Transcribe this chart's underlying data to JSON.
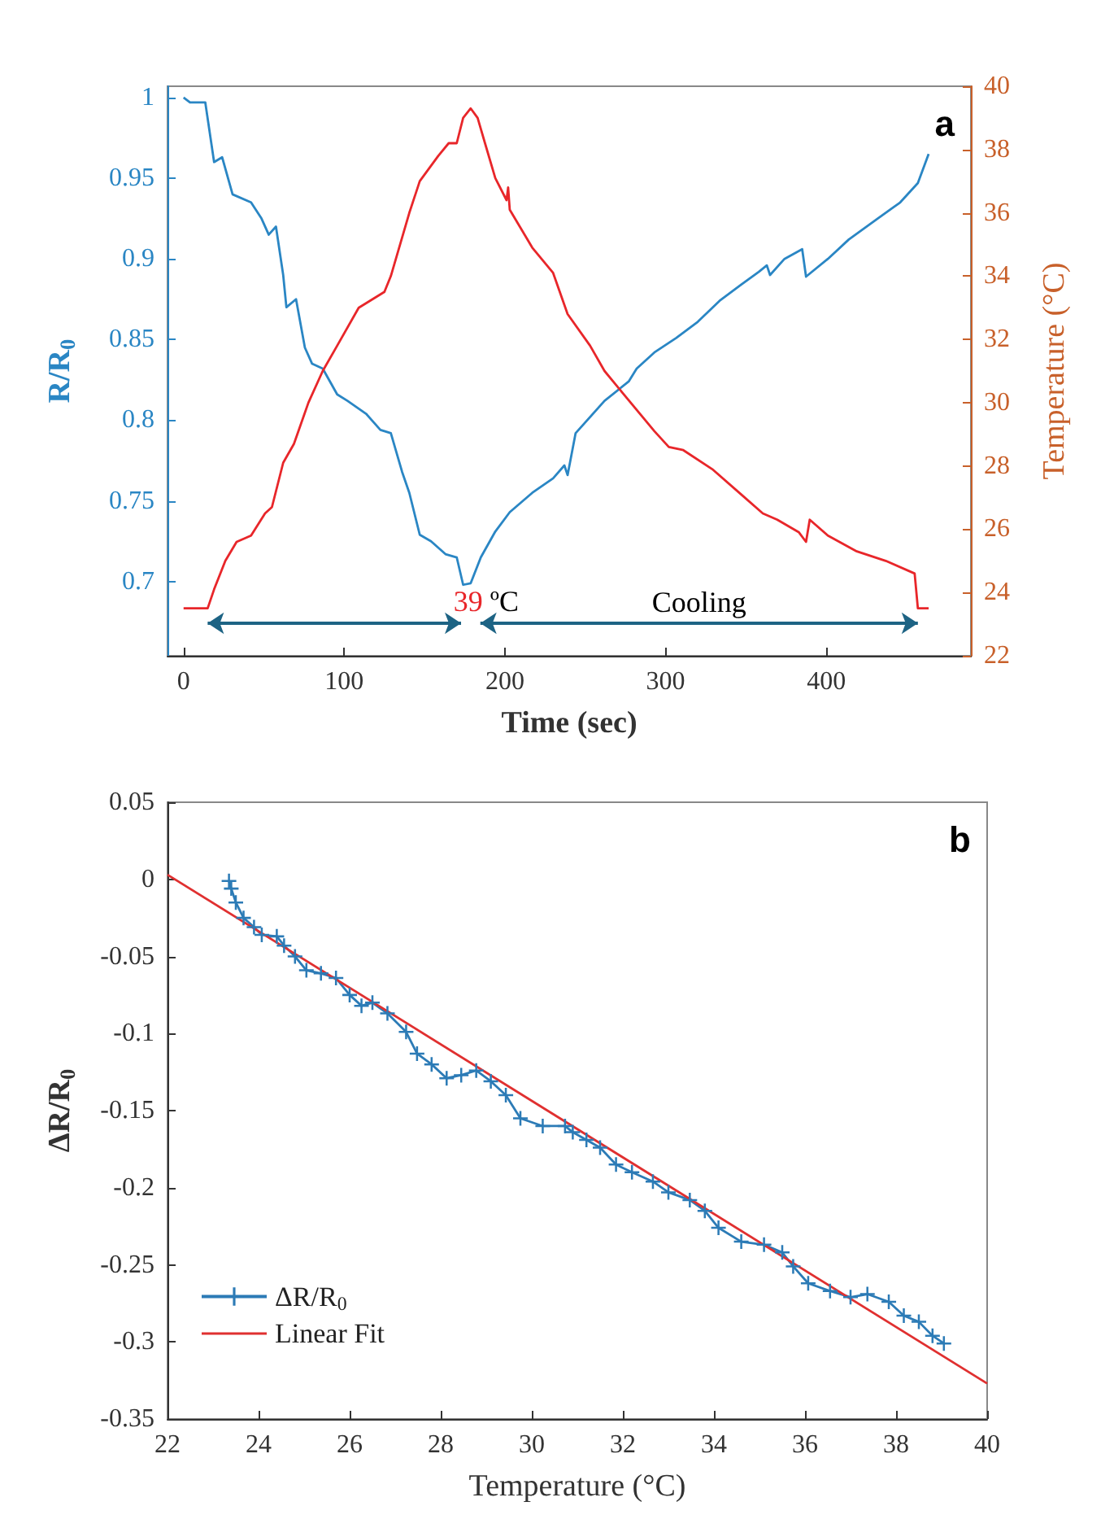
{
  "chart_data": [
    {
      "type": "line",
      "xlabel": "Time (sec)",
      "ylabel": "R/R$_{0}$",
      "y2label": "Temperature (°C)",
      "xlim": [
        -10,
        490
      ],
      "xticks": [
        0,
        100,
        200,
        300,
        400
      ],
      "ylim": [
        0.654,
        1.007
      ],
      "yticks": [
        0.7,
        0.75,
        0.8,
        0.85,
        0.9,
        0.95,
        1
      ],
      "y2lim": [
        22,
        40
      ],
      "y2ticks": [
        22,
        24,
        26,
        28,
        30,
        32,
        34,
        36,
        38,
        40
      ],
      "grid": false,
      "legend": false,
      "series": [
        {
          "color": "#2a86c4",
          "x": [
            0,
            4,
            13.5,
            19,
            24,
            30.5,
            42,
            48.5,
            53,
            57.5,
            62,
            64,
            70,
            75.5,
            80,
            86.6,
            95.6,
            102,
            113.6,
            122.5,
            129,
            136,
            140.5,
            147,
            154,
            163,
            170,
            174,
            178.7,
            185,
            194,
            203,
            217,
            230,
            237,
            239,
            244,
            262,
            277,
            282,
            293,
            306.6,
            320,
            333.6,
            347,
            358,
            363,
            365,
            374,
            385,
            387.4,
            401,
            414,
            432,
            446,
            457,
            463.7
          ],
          "values": [
            1.0,
            0.997,
            0.997,
            0.96,
            0.963,
            0.94,
            0.935,
            0.925,
            0.915,
            0.92,
            0.89,
            0.87,
            0.875,
            0.845,
            0.835,
            0.832,
            0.816,
            0.812,
            0.804,
            0.794,
            0.792,
            0.768,
            0.755,
            0.729,
            0.725,
            0.717,
            0.715,
            0.698,
            0.699,
            0.715,
            0.731,
            0.743,
            0.755,
            0.764,
            0.772,
            0.766,
            0.792,
            0.812,
            0.824,
            0.832,
            0.842,
            0.851,
            0.861,
            0.874,
            0.884,
            0.892,
            0.896,
            0.89,
            0.9,
            0.906,
            0.889,
            0.9,
            0.912,
            0.925,
            0.935,
            0.947,
            0.965
          ]
        },
        {
          "axis": "y2",
          "color": "#e8262a",
          "x": [
            0,
            15,
            19,
            26,
            33,
            42,
            50.7,
            55,
            62,
            68.7,
            77.7,
            86.6,
            95.6,
            109,
            125,
            129,
            140.5,
            147,
            158.5,
            165,
            170,
            174,
            178.7,
            183,
            187.6,
            194,
            201,
            202,
            203,
            217,
            230,
            239,
            253,
            262,
            275,
            293,
            302,
            311,
            329,
            347,
            360.5,
            369.5,
            383,
            387.4,
            389.7,
            401,
            419,
            437,
            455,
            457,
            463.7
          ],
          "values": [
            23.5,
            23.5,
            24.1,
            25,
            25.6,
            25.8,
            26.5,
            26.7,
            28.1,
            28.7,
            30,
            31,
            31.8,
            33,
            33.5,
            34,
            36,
            37,
            37.8,
            38.2,
            38.2,
            39,
            39.3,
            39,
            38.2,
            37.1,
            36.4,
            36.8,
            36.1,
            34.9,
            34.1,
            32.8,
            31.8,
            31,
            30.2,
            29.1,
            28.6,
            28.5,
            27.9,
            27.1,
            26.5,
            26.3,
            25.9,
            25.6,
            26.3,
            25.8,
            25.3,
            25,
            24.6,
            23.5,
            23.5
          ]
        }
      ],
      "annotations": [
        {
          "text": "39 ºC",
          "x": 178.7,
          "y": 0.699
        },
        "Cooling",
        "a"
      ]
    },
    {
      "type": "line",
      "xlabel": "Temperature (°C)",
      "ylabel": "ΔR/R$_{0}$",
      "xlim": [
        22,
        40
      ],
      "xticks": [
        22,
        24,
        26,
        28,
        30,
        32,
        34,
        36,
        38,
        40
      ],
      "ylim": [
        -0.35,
        0.05
      ],
      "yticks": [
        -0.35,
        -0.3,
        -0.25,
        -0.2,
        -0.15,
        -0.1,
        -0.05,
        0,
        0.05
      ],
      "grid": false,
      "legend": "bottom left",
      "series": [
        {
          "name": "ΔR/R$_{0}$",
          "color": "#2c7bb6",
          "marker": "cross",
          "x": [
            23.35,
            23.4,
            23.5,
            23.67,
            23.9,
            24.07,
            24.4,
            24.56,
            24.8,
            25.05,
            25.37,
            25.7,
            26.0,
            26.26,
            26.5,
            26.83,
            27.24,
            27.48,
            27.8,
            28.13,
            28.45,
            28.78,
            29.1,
            29.43,
            29.75,
            30.24,
            30.73,
            30.9,
            31.2,
            31.5,
            31.85,
            32.2,
            32.66,
            33.0,
            33.47,
            33.8,
            34.1,
            34.6,
            35.1,
            35.5,
            35.74,
            36.07,
            36.55,
            37.0,
            37.37,
            37.84,
            38.17,
            38.5,
            38.8,
            39.05
          ],
          "values": [
            -0.001,
            -0.006,
            -0.015,
            -0.025,
            -0.031,
            -0.036,
            -0.037,
            -0.043,
            -0.05,
            -0.059,
            -0.061,
            -0.064,
            -0.075,
            -0.082,
            -0.08,
            -0.087,
            -0.099,
            -0.113,
            -0.12,
            -0.129,
            -0.127,
            -0.124,
            -0.131,
            -0.14,
            -0.155,
            -0.16,
            -0.16,
            -0.164,
            -0.169,
            -0.174,
            -0.185,
            -0.19,
            -0.196,
            -0.203,
            -0.208,
            -0.215,
            -0.226,
            -0.235,
            -0.237,
            -0.242,
            -0.251,
            -0.262,
            -0.267,
            -0.271,
            -0.269,
            -0.274,
            -0.283,
            -0.287,
            -0.296,
            -0.301
          ]
        },
        {
          "name": "Linear Fit",
          "color": "#e03030",
          "marker": "none",
          "x": [
            22,
            40
          ],
          "values": [
            0.003,
            -0.327
          ]
        }
      ],
      "annotations": [
        "b"
      ]
    }
  ]
}
